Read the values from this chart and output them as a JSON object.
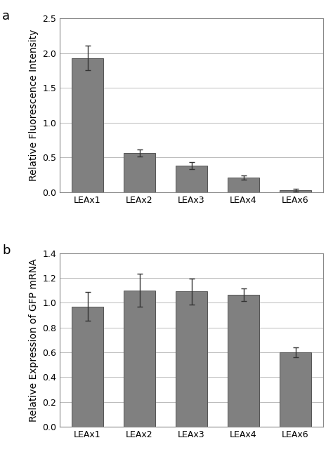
{
  "categories": [
    "LEAx1",
    "LEAx2",
    "LEAx3",
    "LEAx4",
    "LEAx6"
  ],
  "panel_a": {
    "values": [
      1.93,
      0.56,
      0.38,
      0.21,
      0.03
    ],
    "errors": [
      0.18,
      0.05,
      0.05,
      0.03,
      0.02
    ],
    "ylabel": "Relative Fluorescence Intensity",
    "ylim": [
      0,
      2.5
    ],
    "yticks": [
      0,
      0.5,
      1.0,
      1.5,
      2.0,
      2.5
    ],
    "label": "a"
  },
  "panel_b": {
    "values": [
      0.97,
      1.1,
      1.09,
      1.065,
      0.6
    ],
    "errors": [
      0.115,
      0.135,
      0.105,
      0.05,
      0.04
    ],
    "ylabel": "Relative Expression of GFP mRNA",
    "ylim": [
      0,
      1.4
    ],
    "yticks": [
      0,
      0.2,
      0.4,
      0.6,
      0.8,
      1.0,
      1.2,
      1.4
    ],
    "label": "b"
  },
  "bar_color": "#808080",
  "bar_edgecolor": "#555555",
  "bar_width": 0.6,
  "errorbar_color": "#333333",
  "errorbar_capsize": 3,
  "errorbar_linewidth": 1.0,
  "grid_color": "#bbbbbb",
  "background_color": "#ffffff",
  "label_fontsize": 13,
  "tick_fontsize": 9,
  "ylabel_fontsize": 10
}
